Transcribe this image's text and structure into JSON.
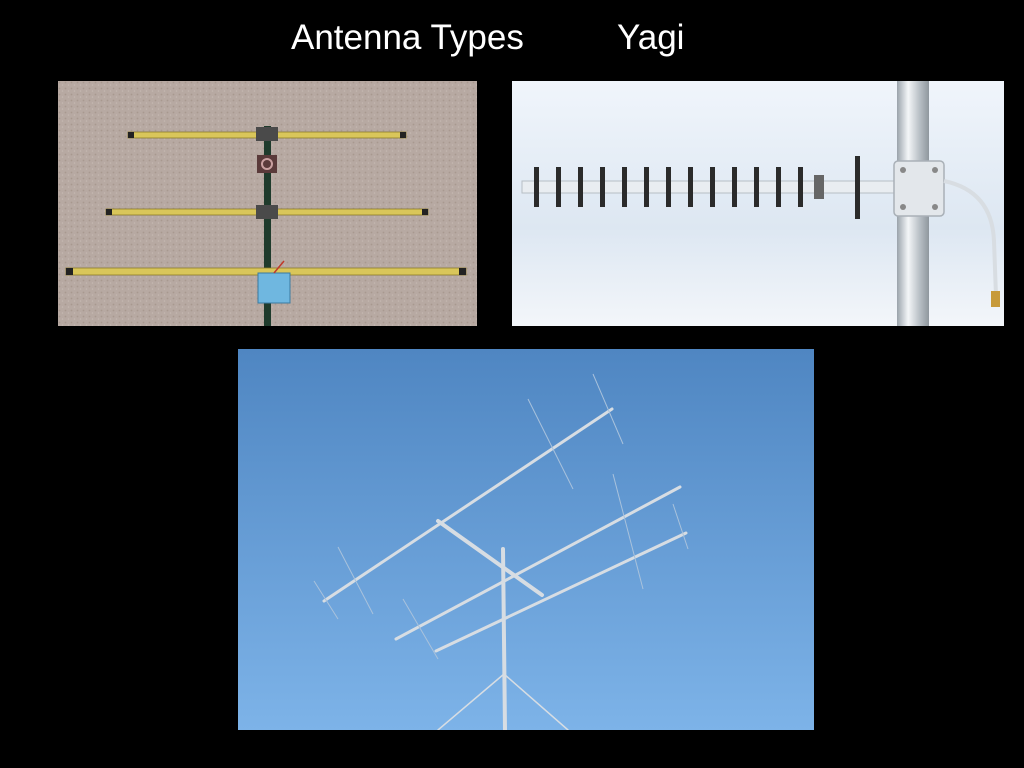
{
  "slide": {
    "title": "Antenna Types",
    "subtitle": "Yagi"
  },
  "photos": [
    {
      "subject": "homemade three-element yagi antenna on carpet",
      "background": "#b3a59e"
    },
    {
      "subject": "many-element yagi antenna mounted on metal mast",
      "background": "#e6eef7"
    },
    {
      "subject": "rooftop yagi antennas against blue sky",
      "background": "#5d95cf"
    }
  ],
  "colors": {
    "slide_background": "#000000",
    "title_text": "#ffffff"
  }
}
